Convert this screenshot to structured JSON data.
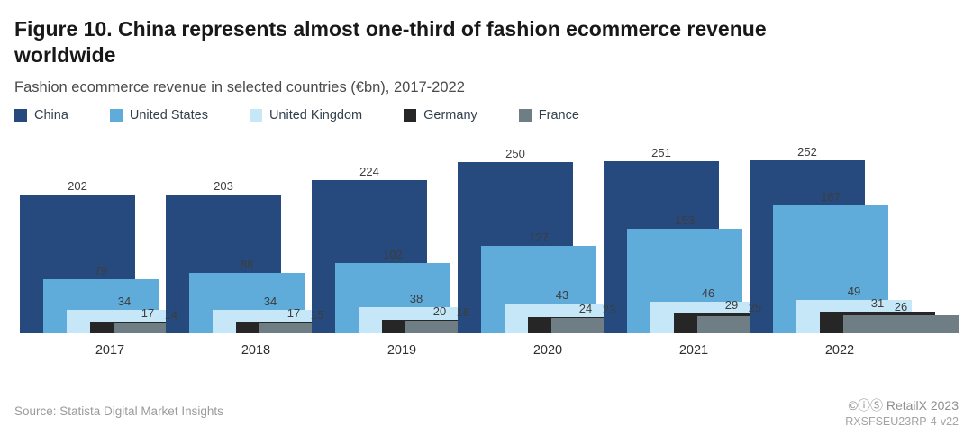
{
  "header": {
    "title": "Figure 10. China represents almost one-third of fashion ecommerce revenue worldwide",
    "subtitle": "Fashion ecommerce revenue in selected countries (€bn), 2017-2022"
  },
  "chart_data": {
    "type": "bar",
    "variant": "overlapping-offset-bars",
    "categories": [
      "2017",
      "2018",
      "2019",
      "2020",
      "2021",
      "2022"
    ],
    "series": [
      {
        "name": "China",
        "color": "#264a7d",
        "values": [
          202,
          203,
          224,
          250,
          251,
          252
        ]
      },
      {
        "name": "United States",
        "color": "#5fabd9",
        "values": [
          79,
          88,
          102,
          127,
          153,
          187
        ]
      },
      {
        "name": "United Kingdom",
        "color": "#c6e7f7",
        "values": [
          34,
          34,
          38,
          43,
          46,
          49
        ]
      },
      {
        "name": "Germany",
        "color": "#262626",
        "values": [
          17,
          17,
          20,
          24,
          29,
          31
        ]
      },
      {
        "name": "France",
        "color": "#6f7e85",
        "values": [
          14,
          15,
          18,
          23,
          25,
          26
        ]
      }
    ],
    "title": "Fashion ecommerce revenue in selected countries (€bn), 2017-2022",
    "xlabel": "",
    "ylabel": "",
    "ylim": [
      0,
      260
    ],
    "grid": false,
    "legend_position": "top",
    "value_labels": true
  },
  "footer": {
    "source": "Source: Statista Digital Market Insights",
    "credit": "©ⓘⓈ RetailX 2023",
    "code": "RXSFSEU23RP-4-v22"
  }
}
